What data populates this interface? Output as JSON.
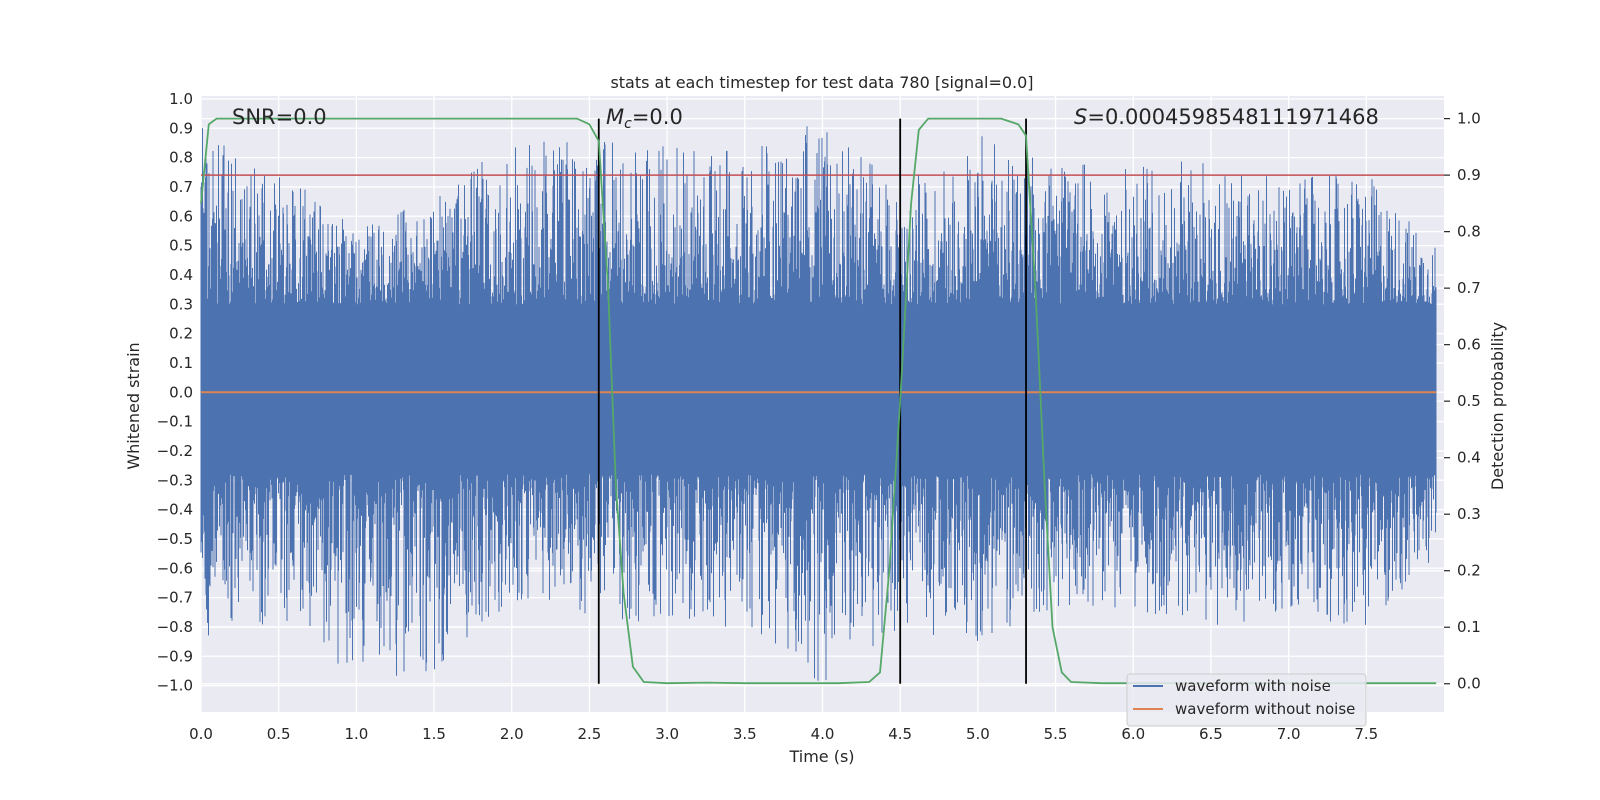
{
  "chart_data": {
    "type": "line",
    "title": "stats at each timestep for test data 780 [signal=0.0]",
    "xlabel": "Time (s)",
    "ylabel_left": "Whitened strain",
    "ylabel_right": "Detection probability",
    "xlim": [
      0.0,
      8.0
    ],
    "ylim_left": [
      -1.09,
      1.01
    ],
    "ylim_right": [
      -0.05,
      1.04
    ],
    "x_ticks": [
      "0.0",
      "0.5",
      "1.0",
      "1.5",
      "2.0",
      "2.5",
      "3.0",
      "3.5",
      "4.0",
      "4.5",
      "5.0",
      "5.5",
      "6.0",
      "6.5",
      "7.0",
      "7.5"
    ],
    "left_ticks": [
      "1.0",
      "0.9",
      "0.8",
      "0.7",
      "0.6",
      "0.5",
      "0.4",
      "0.3",
      "0.2",
      "0.1",
      "0.0",
      "−0.1",
      "−0.2",
      "−0.3",
      "−0.4",
      "−0.5",
      "−0.6",
      "−0.7",
      "−0.8",
      "−0.9",
      "−1.0"
    ],
    "right_ticks": [
      "1.0",
      "0.9",
      "0.8",
      "0.7",
      "0.6",
      "0.5",
      "0.4",
      "0.3",
      "0.2",
      "0.1",
      "0.0"
    ],
    "annotations": {
      "snr": "SNR=0.0",
      "mc_symbol": "M",
      "mc_sub": "c",
      "mc_value": "=0.0",
      "s_symbol": "S",
      "s_value": "=0.0004598548111971468"
    },
    "threshold": 0.9,
    "vertical_lines": [
      2.56,
      4.5,
      5.31
    ],
    "probability_series": {
      "name": "Detection probability",
      "x": [
        0.0,
        0.05,
        0.1,
        0.15,
        0.3,
        0.6,
        1.0,
        1.5,
        2.0,
        2.3,
        2.42,
        2.5,
        2.56,
        2.62,
        2.67,
        2.72,
        2.78,
        2.85,
        3.0,
        3.25,
        3.5,
        3.8,
        4.1,
        4.3,
        4.37,
        4.43,
        4.5,
        4.57,
        4.62,
        4.68,
        4.8,
        5.0,
        5.15,
        5.26,
        5.31,
        5.37,
        5.43,
        5.48,
        5.54,
        5.6,
        5.8,
        6.5,
        7.0,
        7.5,
        7.95
      ],
      "y": [
        0.85,
        0.99,
        1.0,
        1.0,
        1.0,
        1.0,
        1.0,
        1.0,
        1.0,
        1.0,
        1.0,
        0.99,
        0.96,
        0.7,
        0.35,
        0.16,
        0.03,
        0.003,
        0.001,
        0.002,
        0.001,
        0.001,
        0.001,
        0.003,
        0.02,
        0.2,
        0.5,
        0.85,
        0.98,
        1.0,
        1.0,
        1.0,
        1.0,
        0.99,
        0.97,
        0.7,
        0.35,
        0.1,
        0.02,
        0.003,
        0.001,
        0.001,
        0.001,
        0.001,
        0.001
      ]
    },
    "noise_envelope_series": {
      "name": "waveform with noise",
      "x": [
        0.0,
        0.5,
        1.0,
        1.5,
        2.0,
        2.5,
        3.0,
        3.5,
        4.0,
        4.5,
        5.0,
        5.5,
        6.0,
        6.5,
        7.0,
        7.5,
        7.95
      ],
      "max": [
        0.93,
        0.74,
        0.6,
        0.66,
        0.87,
        0.86,
        0.84,
        0.82,
        0.93,
        0.7,
        0.88,
        0.78,
        0.77,
        0.8,
        0.73,
        0.75,
        0.5
      ],
      "min": [
        -0.84,
        -0.78,
        -0.98,
        -0.96,
        -0.71,
        -0.76,
        -0.8,
        -0.8,
        -1.0,
        -0.8,
        -0.87,
        -0.73,
        -0.74,
        -0.8,
        -0.77,
        -0.8,
        -0.6
      ]
    },
    "clean_series": {
      "name": "waveform without noise",
      "x": [
        0.0,
        7.95
      ],
      "y": [
        0.0,
        0.0
      ]
    },
    "legend": [
      "waveform with noise",
      "waveform without noise"
    ],
    "legend_position": "lower-right",
    "colors": {
      "background": "#eaeaf2",
      "grid": "#ffffff",
      "noise": "#4c72b0",
      "clean": "#dd8452",
      "probability": "#55a868",
      "threshold": "#c44e52",
      "vline": "#000000"
    }
  }
}
